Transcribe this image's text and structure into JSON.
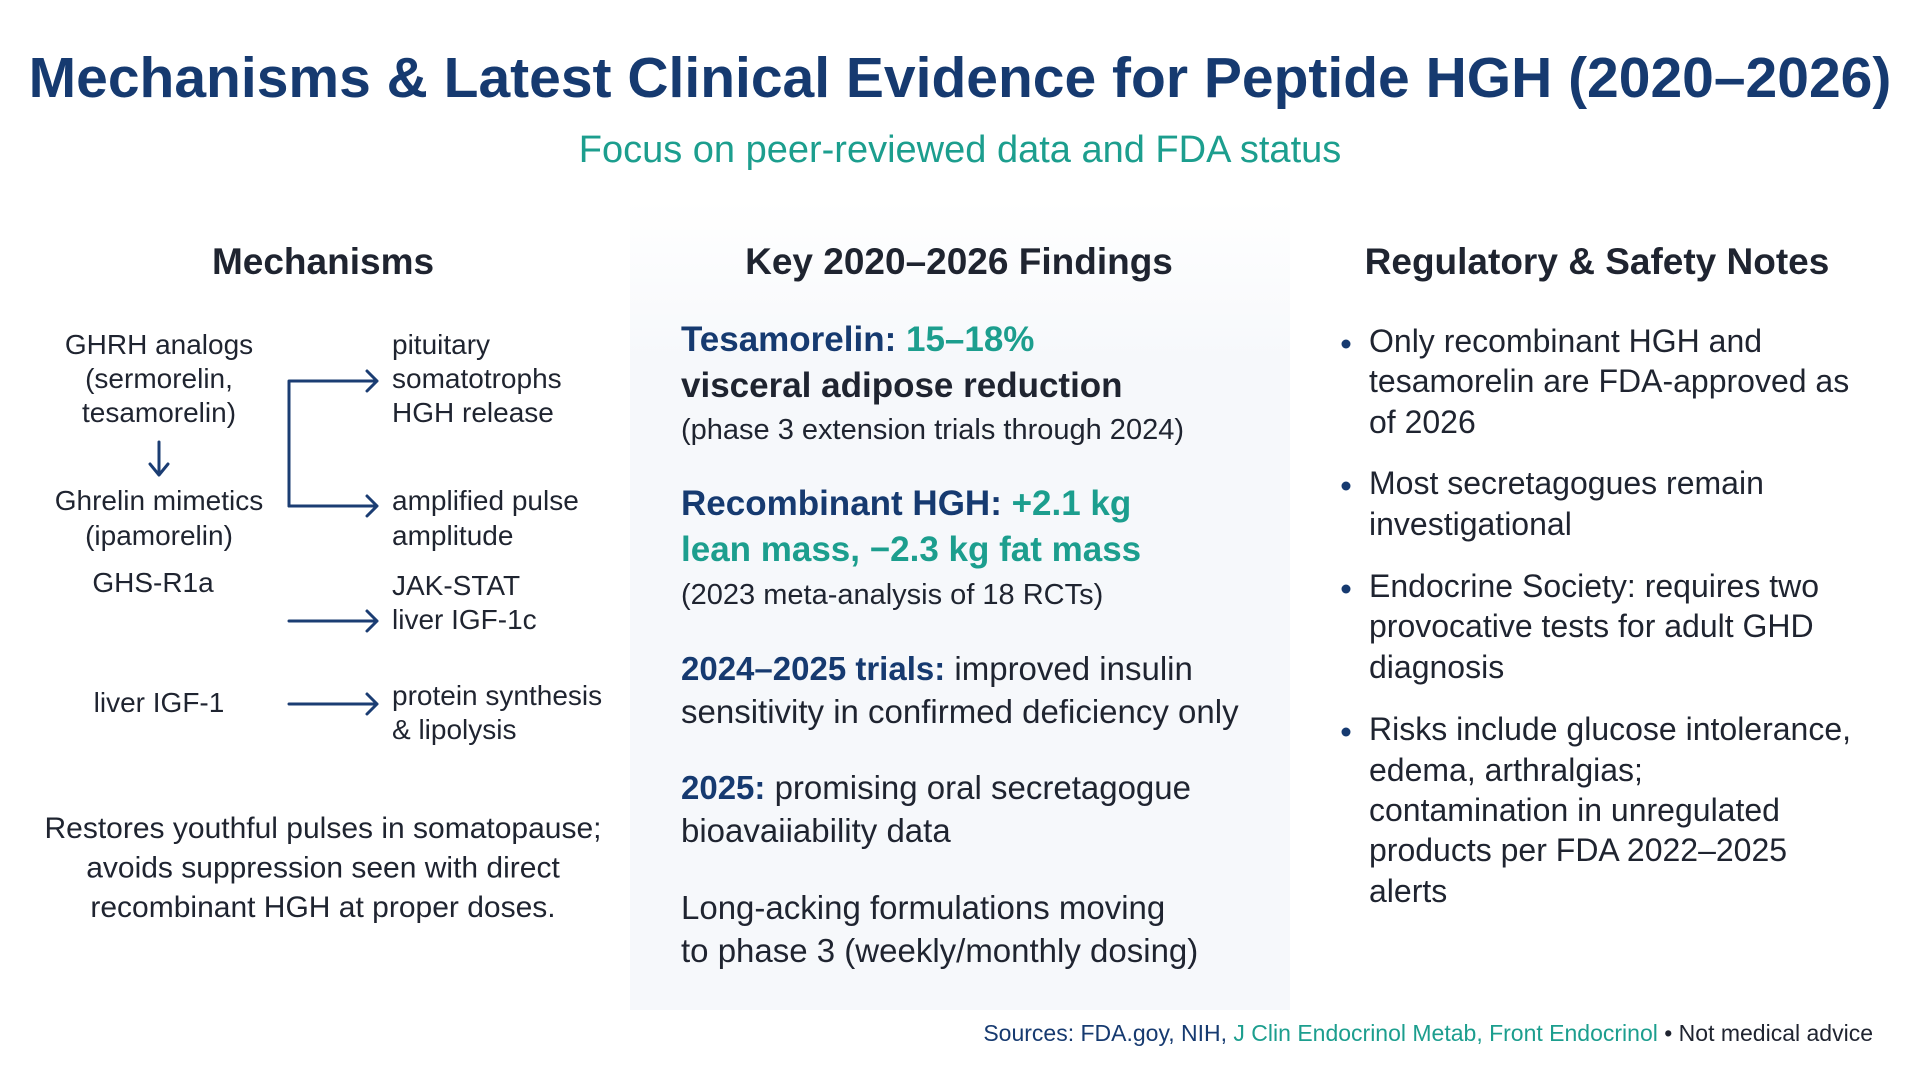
{
  "header": {
    "title": "Mechanisms & Latest Clinical Evidence for Peptide HGH (2020–2026)",
    "subtitle": "Focus on peer-reviewed data and FDA status"
  },
  "mechanisms": {
    "heading": "Mechanisms",
    "sources": [
      [
        "GHRH analogs",
        "(sermorelin,",
        "tesamorelin)"
      ],
      [
        "Ghrelin mimetics",
        "(ipamorelin)"
      ],
      [
        "GHS-R1a"
      ],
      [
        "liver IGF-1"
      ]
    ],
    "effects": [
      [
        "pituitary",
        "somatotrophs",
        "HGH release"
      ],
      [
        "amplified pulse",
        "amplitude"
      ],
      [
        "JAK-STAT",
        "liver IGF-1c"
      ],
      [
        "protein synthesis",
        "& lipolysis"
      ]
    ],
    "summary": [
      "Restores youthful pulses in somatopause;",
      "avoids suppression seen with direct",
      "recombinant HGH at proper doses."
    ]
  },
  "findings": {
    "heading": "Key 2020–2026 Findings",
    "items": [
      [
        [
          "Tesamorelin:",
          "15–18%"
        ],
        [
          "visceral adipose reduction"
        ],
        [
          "(phase 3 extension trials through 2024)"
        ]
      ],
      [
        [
          "Recombinant HGH:",
          "+2.1 kg"
        ],
        [
          "lean mass, −2.3 kg fat mass"
        ],
        [
          "(2023 meta-analysis of 18 RCTs)"
        ]
      ],
      [
        [
          "2024–2025 trials:",
          "improved insulin"
        ],
        [
          "sensitivity in confirmed deficiency only"
        ]
      ],
      [
        [
          "2025:",
          "promising oral secretagogue"
        ],
        [
          "bioavaiiability data"
        ]
      ],
      [
        [
          "Long-acking formulations moving"
        ],
        [
          "to phase 3 (weekly/monthly dosing)"
        ]
      ]
    ]
  },
  "regulatory": {
    "heading": "Regulatory & Safety Notes",
    "bullets": [
      [
        "Only recombinant HGH and",
        "tesamorelin are FDA-approved as",
        "of 2026"
      ],
      [
        "Most secretagogues remain",
        "investigational"
      ],
      [
        "Endocrine Society: requires two",
        "provocative tests for adult GHD",
        "diagnosis"
      ],
      [
        "Risks include glucose intolerance,",
        "edema, arthralgias;",
        "contamination in unregulated",
        "products per FDA 2022–2025",
        "alerts"
      ]
    ]
  },
  "footer": [
    "Sources: FDA.goy, NIH,",
    "J Clin Endocrinol Metab, Front Endocrinol",
    "• Not medical advice"
  ]
}
